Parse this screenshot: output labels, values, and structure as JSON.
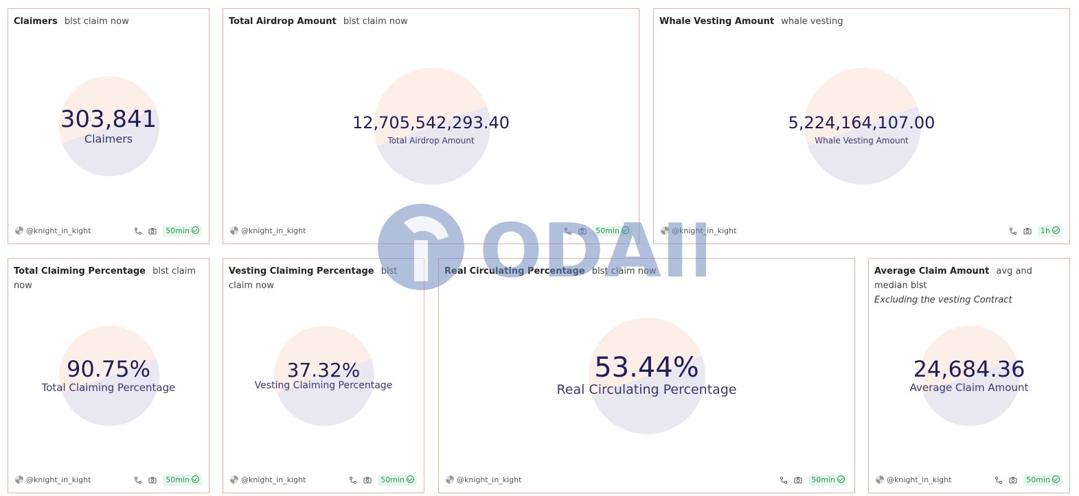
{
  "cards": [
    {
      "title": "Claimers",
      "subtitle": "blst claim now",
      "value": "303,841",
      "label": "Claimers",
      "author": "@knight_in_kight",
      "refresh": "50min"
    },
    {
      "title": "Total Airdrop Amount",
      "subtitle": "blst claim now",
      "value": "12,705,542,293.40",
      "label": "Total Airdrop Amount",
      "author": "@knight_in_kight",
      "refresh": "50min"
    },
    {
      "title": "Whale Vesting Amount",
      "subtitle": "whale vesting",
      "value": "5,224,164,107.00",
      "label": "Whale Vesting Amount",
      "author": "@knight_in_kight",
      "refresh": "1h"
    },
    {
      "title": "Total Claiming Percentage",
      "subtitle": "blst claim now",
      "value": "90.75%",
      "label": "Total Claiming Percentage",
      "author": "@knight_in_kight",
      "refresh": "50min"
    },
    {
      "title": "Vesting Claiming Percentage",
      "subtitle": "blst claim now",
      "value": "37.32%",
      "label": "Vesting Claiming Percentage",
      "author": "@knight_in_kight",
      "refresh": "50min"
    },
    {
      "title": "Real Circulating Percentage",
      "subtitle": "blst claim now",
      "value": "53.44%",
      "label": "Real Circulating Percentage",
      "author": "@knight_in_kight",
      "refresh": "50min"
    },
    {
      "title": "Average Claim Amount",
      "subtitle": "avg and median blst",
      "note": "Excluding the vesting Contract",
      "value": "24,684.36",
      "label": "Average Claim Amount",
      "author": "@knight_in_kight",
      "refresh": "50min"
    }
  ],
  "watermark": {
    "text": "ODAILY"
  },
  "colors": {
    "border": "#e9b3a3",
    "value": "#1f1d5b",
    "badge": "#2a9d5c"
  }
}
